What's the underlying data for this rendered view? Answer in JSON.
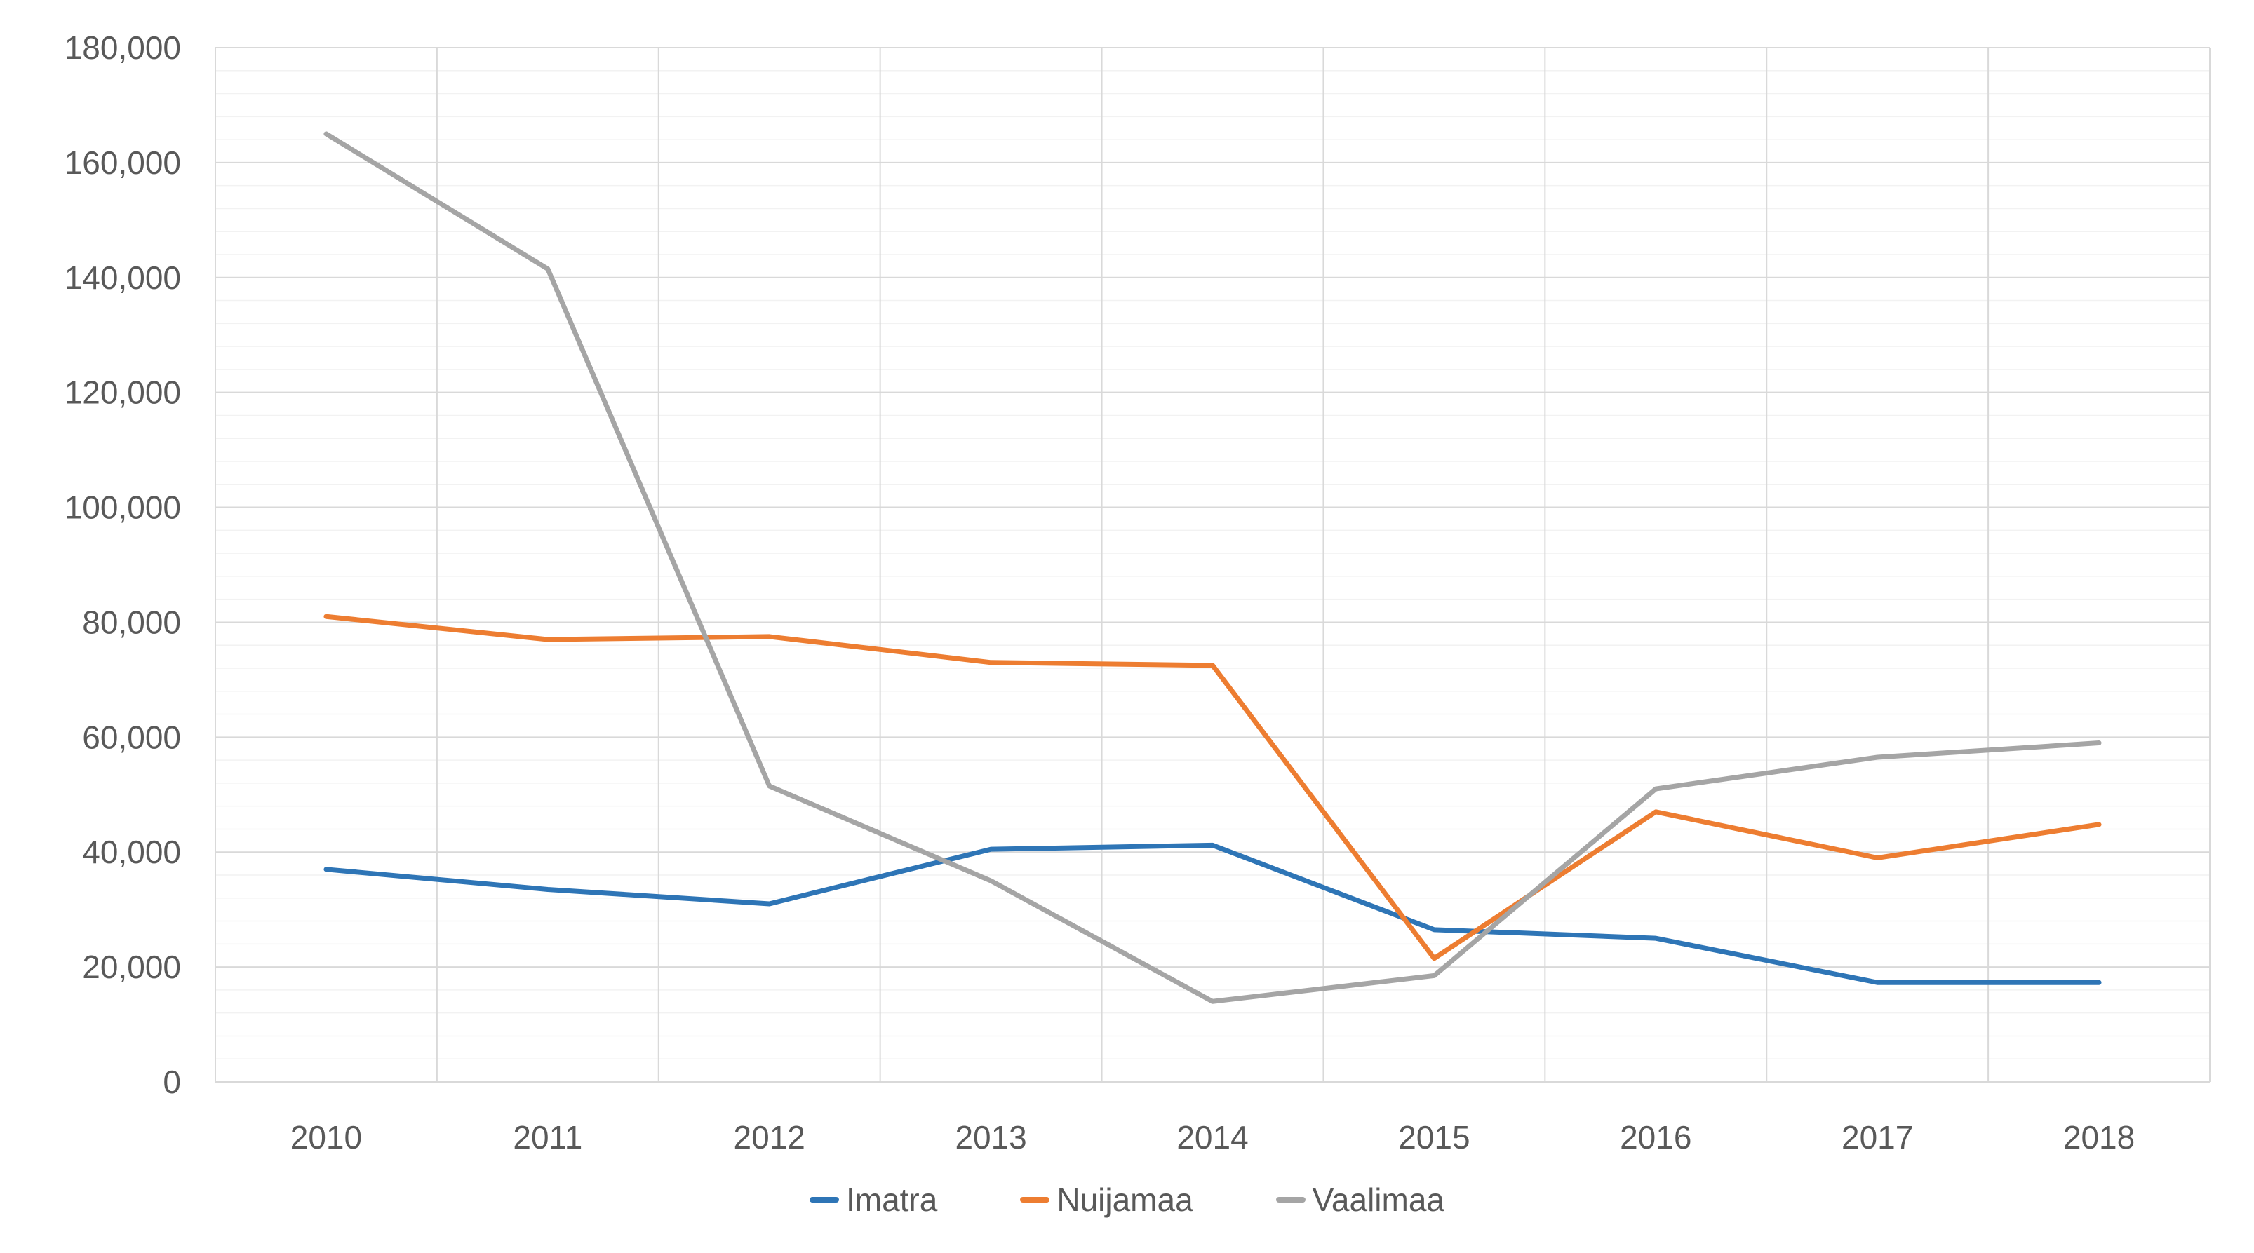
{
  "chart_data": {
    "type": "line",
    "title": "",
    "xlabel": "",
    "ylabel": "",
    "categories": [
      "2010",
      "2011",
      "2012",
      "2013",
      "2014",
      "2015",
      "2016",
      "2017",
      "2018"
    ],
    "series": [
      {
        "name": "Imatra",
        "color": "#2E75B6",
        "values": [
          37000,
          33500,
          31000,
          40500,
          41200,
          26500,
          25000,
          17300,
          17300
        ]
      },
      {
        "name": "Nuijamaa",
        "color": "#ED7D31",
        "values": [
          81000,
          77000,
          77500,
          73000,
          72500,
          21500,
          47000,
          39000,
          44800
        ]
      },
      {
        "name": "Vaalimaa",
        "color": "#A5A5A5",
        "values": [
          165000,
          141500,
          51500,
          35000,
          14000,
          18500,
          51000,
          56500,
          59000
        ]
      }
    ],
    "ylim": [
      0,
      180000
    ],
    "y_major_step": 20000,
    "y_minor_step": 4000,
    "grid": {
      "major": true,
      "minor": true,
      "vertical": true
    },
    "legend_position": "bottom"
  },
  "axis": {
    "y_tick_labels": [
      "0",
      "20,000",
      "40,000",
      "60,000",
      "80,000",
      "100,000",
      "120,000",
      "140,000",
      "160,000",
      "180,000"
    ],
    "x_tick_labels": [
      "2010",
      "2011",
      "2012",
      "2013",
      "2014",
      "2015",
      "2016",
      "2017",
      "2018"
    ]
  },
  "colors": {
    "background": "#FFFFFF",
    "major_gridline": "#D9D9D9",
    "minor_gridline": "#F2F2F2",
    "axis_line": "#D9D9D9",
    "tick_label": "#595959",
    "legend_label": "#595959"
  }
}
